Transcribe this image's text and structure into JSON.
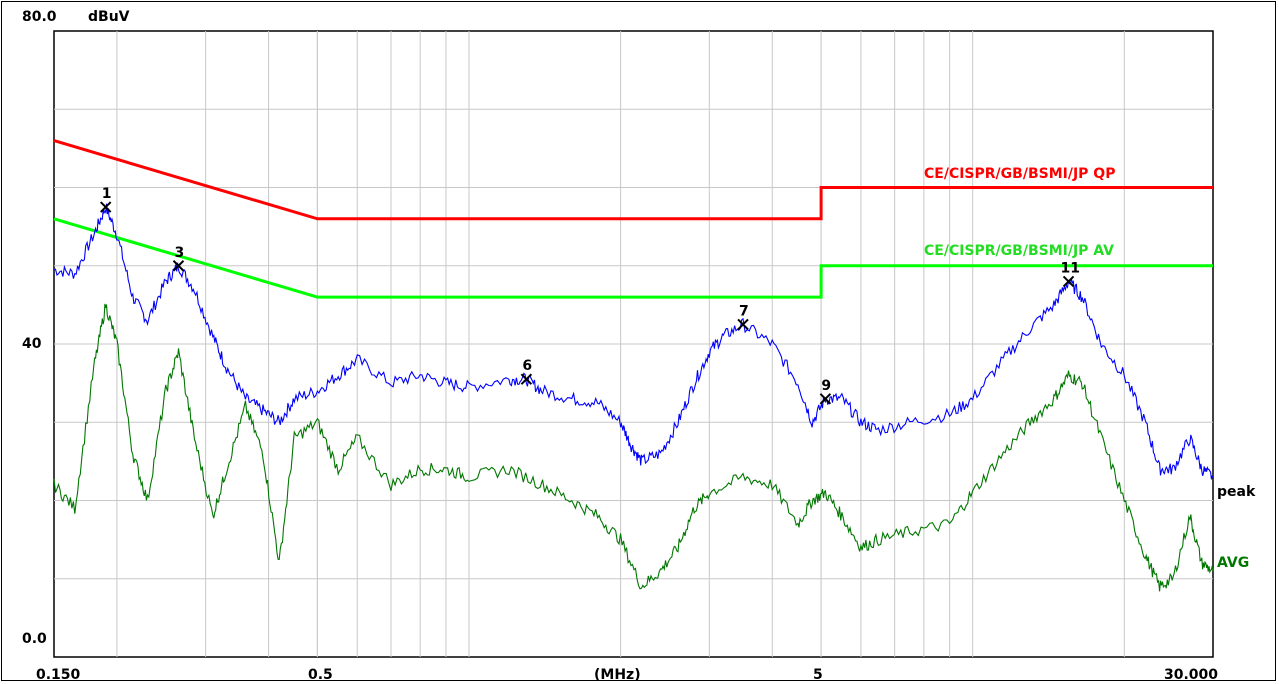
{
  "chart_data": {
    "type": "line",
    "ylabel": "dBuV",
    "xlabel": "(MHz)",
    "x_scale": "log",
    "xlim": [
      0.15,
      30.0
    ],
    "ylim": [
      0,
      80
    ],
    "y_tick_labels": {
      "top": "80.0",
      "mid": "40",
      "bottom": "0.0"
    },
    "x_tick_labels": [
      "0.150",
      "0.5",
      "(MHz)",
      "5",
      "30.000"
    ],
    "grid": true,
    "limits": [
      {
        "name": "CE/CISPR/GB/BSMI/JP QP",
        "color": "#ff0000",
        "points": [
          [
            0.15,
            66
          ],
          [
            0.5,
            56
          ],
          [
            5,
            56
          ],
          [
            5,
            60
          ],
          [
            30,
            60
          ]
        ]
      },
      {
        "name": "CE/CISPR/GB/BSMI/JP AV",
        "color": "#00ff00",
        "points": [
          [
            0.15,
            56
          ],
          [
            0.5,
            46
          ],
          [
            5,
            46
          ],
          [
            5,
            50
          ],
          [
            30,
            50
          ]
        ]
      }
    ],
    "series": [
      {
        "name": "peak",
        "color": "#0000ff",
        "points": [
          [
            0.15,
            49.5
          ],
          [
            0.165,
            49
          ],
          [
            0.18,
            54
          ],
          [
            0.19,
            57.5
          ],
          [
            0.2,
            54
          ],
          [
            0.215,
            46
          ],
          [
            0.23,
            43
          ],
          [
            0.25,
            48
          ],
          [
            0.265,
            50
          ],
          [
            0.285,
            47
          ],
          [
            0.31,
            41
          ],
          [
            0.33,
            37
          ],
          [
            0.36,
            33
          ],
          [
            0.39,
            31.5
          ],
          [
            0.42,
            30
          ],
          [
            0.45,
            33
          ],
          [
            0.5,
            34
          ],
          [
            0.55,
            36
          ],
          [
            0.6,
            38
          ],
          [
            0.7,
            35
          ],
          [
            0.8,
            36
          ],
          [
            0.9,
            35
          ],
          [
            1.0,
            34.5
          ],
          [
            1.2,
            35.5
          ],
          [
            1.3,
            35.5
          ],
          [
            1.4,
            34
          ],
          [
            1.6,
            33
          ],
          [
            1.8,
            32.5
          ],
          [
            2.0,
            30
          ],
          [
            2.1,
            27
          ],
          [
            2.2,
            25
          ],
          [
            2.4,
            26
          ],
          [
            2.6,
            30
          ],
          [
            2.8,
            35
          ],
          [
            3.0,
            39
          ],
          [
            3.2,
            41
          ],
          [
            3.5,
            42.5
          ],
          [
            4.0,
            40
          ],
          [
            4.5,
            35
          ],
          [
            4.8,
            30
          ],
          [
            5.1,
            33
          ],
          [
            5.5,
            33
          ],
          [
            6.0,
            30
          ],
          [
            6.5,
            29
          ],
          [
            7.5,
            30
          ],
          [
            9.0,
            31
          ],
          [
            10.0,
            33
          ],
          [
            11.5,
            38
          ],
          [
            13.0,
            42
          ],
          [
            14.5,
            45
          ],
          [
            15.5,
            48
          ],
          [
            16.5,
            46
          ],
          [
            18.0,
            40
          ],
          [
            20.0,
            36
          ],
          [
            22.0,
            30
          ],
          [
            23.5,
            24
          ],
          [
            25.0,
            24
          ],
          [
            27.0,
            28
          ],
          [
            28.5,
            24
          ],
          [
            30.0,
            23
          ]
        ]
      },
      {
        "name": "AVG",
        "color": "#007700",
        "points": [
          [
            0.15,
            22
          ],
          [
            0.165,
            19
          ],
          [
            0.18,
            37
          ],
          [
            0.19,
            45
          ],
          [
            0.2,
            40
          ],
          [
            0.215,
            26
          ],
          [
            0.23,
            20
          ],
          [
            0.25,
            34
          ],
          [
            0.265,
            39
          ],
          [
            0.285,
            28
          ],
          [
            0.31,
            18
          ],
          [
            0.33,
            24
          ],
          [
            0.36,
            32
          ],
          [
            0.39,
            26
          ],
          [
            0.42,
            12
          ],
          [
            0.45,
            28
          ],
          [
            0.5,
            30
          ],
          [
            0.55,
            24
          ],
          [
            0.6,
            28
          ],
          [
            0.7,
            22
          ],
          [
            0.8,
            24
          ],
          [
            0.9,
            24
          ],
          [
            1.0,
            23
          ],
          [
            1.2,
            24
          ],
          [
            1.4,
            22
          ],
          [
            1.6,
            20
          ],
          [
            1.8,
            18
          ],
          [
            2.0,
            15
          ],
          [
            2.2,
            9
          ],
          [
            2.4,
            11
          ],
          [
            2.6,
            14
          ],
          [
            2.8,
            19
          ],
          [
            3.0,
            21
          ],
          [
            3.5,
            23
          ],
          [
            4.0,
            22
          ],
          [
            4.5,
            17
          ],
          [
            4.8,
            20
          ],
          [
            5.1,
            21
          ],
          [
            5.5,
            18
          ],
          [
            6.0,
            14
          ],
          [
            6.5,
            15
          ],
          [
            7.5,
            16
          ],
          [
            9.0,
            17
          ],
          [
            10.0,
            21
          ],
          [
            11.5,
            26
          ],
          [
            13.0,
            30
          ],
          [
            14.5,
            33
          ],
          [
            15.5,
            36
          ],
          [
            16.5,
            35
          ],
          [
            18.0,
            28
          ],
          [
            20.0,
            20
          ],
          [
            22.0,
            13
          ],
          [
            23.5,
            9
          ],
          [
            25.0,
            10
          ],
          [
            27.0,
            18
          ],
          [
            28.5,
            12
          ],
          [
            30.0,
            11
          ]
        ]
      }
    ],
    "markers": [
      {
        "label": "1",
        "x": 0.19,
        "y": 57.5
      },
      {
        "label": "3",
        "x": 0.265,
        "y": 50
      },
      {
        "label": "6",
        "x": 1.3,
        "y": 35.5
      },
      {
        "label": "7",
        "x": 3.5,
        "y": 42.5
      },
      {
        "label": "9",
        "x": 5.1,
        "y": 33
      },
      {
        "label": "11",
        "x": 15.5,
        "y": 48
      }
    ]
  }
}
